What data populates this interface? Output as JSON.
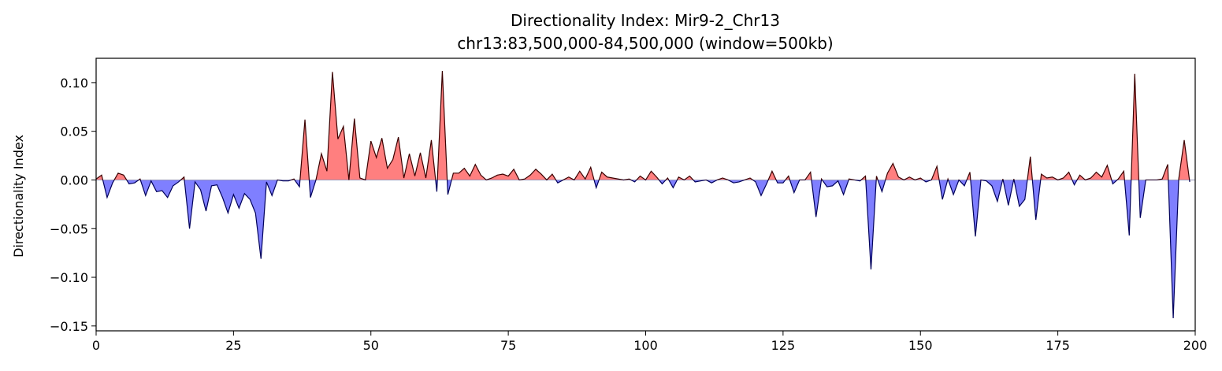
{
  "chart_data": {
    "type": "area",
    "title": "Directionality Index: Mir9-2_Chr13",
    "subtitle": "chr13:83,500,000-84,500,000 (window=500kb)",
    "xlabel": "",
    "ylabel": "Directionality Index",
    "xlim": [
      0,
      200
    ],
    "ylim": [
      -0.155,
      0.125
    ],
    "xticks": [
      0,
      25,
      50,
      75,
      100,
      125,
      150,
      175,
      200
    ],
    "yticks": [
      -0.15,
      -0.1,
      -0.05,
      0.0,
      0.05,
      0.1
    ],
    "xtick_labels": [
      "0",
      "25",
      "50",
      "75",
      "100",
      "125",
      "150",
      "175",
      "200"
    ],
    "ytick_labels": [
      "−0.15",
      "−0.10",
      "−0.05",
      "0.00",
      "0.05",
      "0.10"
    ],
    "grid": false,
    "colors": {
      "positive": "#ff7f7f",
      "negative": "#7f7fff",
      "line_positive": "#3a0000",
      "line_negative": "#00005a",
      "zero_line": "#9999bb"
    },
    "x": [
      0,
      1,
      2,
      3,
      4,
      5,
      6,
      7,
      8,
      9,
      10,
      11,
      12,
      13,
      14,
      15,
      16,
      17,
      18,
      19,
      20,
      21,
      22,
      23,
      24,
      25,
      26,
      27,
      28,
      29,
      30,
      31,
      32,
      33,
      34,
      35,
      36,
      37,
      38,
      39,
      40,
      41,
      42,
      43,
      44,
      45,
      46,
      47,
      48,
      49,
      50,
      51,
      52,
      53,
      54,
      55,
      56,
      57,
      58,
      59,
      60,
      61,
      62,
      63,
      64,
      65,
      66,
      67,
      68,
      69,
      70,
      71,
      72,
      73,
      74,
      75,
      76,
      77,
      78,
      79,
      80,
      81,
      82,
      83,
      84,
      85,
      86,
      87,
      88,
      89,
      90,
      91,
      92,
      93,
      94,
      95,
      96,
      97,
      98,
      99,
      100,
      101,
      102,
      103,
      104,
      105,
      106,
      107,
      108,
      109,
      110,
      111,
      112,
      113,
      114,
      115,
      116,
      117,
      118,
      119,
      120,
      121,
      122,
      123,
      124,
      125,
      126,
      127,
      128,
      129,
      130,
      131,
      132,
      133,
      134,
      135,
      136,
      137,
      138,
      139,
      140,
      141,
      142,
      143,
      144,
      145,
      146,
      147,
      148,
      149,
      150,
      151,
      152,
      153,
      154,
      155,
      156,
      157,
      158,
      159,
      160,
      161,
      162,
      163,
      164,
      165,
      166,
      167,
      168,
      169,
      170,
      171,
      172,
      173,
      174,
      175,
      176,
      177,
      178,
      179,
      180,
      181,
      182,
      183,
      184,
      185,
      186,
      187,
      188,
      189,
      190,
      191,
      192,
      193,
      194,
      195,
      196,
      197,
      198,
      199
    ],
    "values": [
      0.001,
      0.005,
      -0.018,
      -0.003,
      0.007,
      0.005,
      -0.004,
      -0.003,
      0.001,
      -0.016,
      -0.001,
      -0.012,
      -0.011,
      -0.018,
      -0.006,
      -0.002,
      0.003,
      -0.05,
      -0.002,
      -0.01,
      -0.032,
      -0.006,
      -0.005,
      -0.018,
      -0.034,
      -0.015,
      -0.029,
      -0.014,
      -0.02,
      -0.034,
      -0.081,
      -0.002,
      -0.016,
      0.0,
      -0.001,
      -0.001,
      0.001,
      -0.007,
      0.062,
      -0.018,
      0.0,
      0.027,
      0.009,
      0.111,
      0.042,
      0.055,
      0.0,
      0.063,
      0.002,
      0.0,
      0.04,
      0.023,
      0.043,
      0.012,
      0.021,
      0.044,
      0.002,
      0.027,
      0.004,
      0.028,
      0.002,
      0.041,
      -0.012,
      0.112,
      -0.015,
      0.007,
      0.007,
      0.012,
      0.004,
      0.016,
      0.005,
      0.0,
      0.002,
      0.005,
      0.006,
      0.004,
      0.011,
      0.0,
      0.001,
      0.005,
      0.011,
      0.006,
      0.0,
      0.006,
      -0.003,
      0.0,
      0.003,
      0.0,
      0.009,
      0.001,
      0.013,
      -0.008,
      0.008,
      0.003,
      0.002,
      0.001,
      0.0,
      0.001,
      -0.002,
      0.004,
      0.0,
      0.009,
      0.003,
      -0.004,
      0.002,
      -0.008,
      0.003,
      0.0,
      0.004,
      -0.002,
      -0.001,
      0.0,
      -0.003,
      0.0,
      0.002,
      0.0,
      -0.003,
      -0.002,
      0.0,
      0.002,
      -0.002,
      -0.016,
      -0.004,
      0.009,
      -0.003,
      -0.003,
      0.004,
      -0.013,
      0.0,
      0.0,
      0.008,
      -0.038,
      0.001,
      -0.007,
      -0.006,
      -0.001,
      -0.015,
      0.001,
      0.0,
      -0.001,
      0.004,
      -0.092,
      0.004,
      -0.012,
      0.007,
      0.017,
      0.003,
      0.0,
      0.003,
      0.0,
      0.002,
      -0.002,
      0.0,
      0.014,
      -0.02,
      0.001,
      -0.015,
      0.0,
      -0.006,
      0.008,
      -0.058,
      0.0,
      -0.001,
      -0.006,
      -0.022,
      0.001,
      -0.026,
      0.001,
      -0.027,
      -0.02,
      0.024,
      -0.041,
      0.006,
      0.002,
      0.003,
      0.0,
      0.002,
      0.008,
      -0.005,
      0.005,
      0.0,
      0.002,
      0.008,
      0.003,
      0.015,
      -0.004,
      0.001,
      0.009,
      -0.057,
      0.109,
      -0.039,
      0.0,
      0.0,
      0.0,
      0.001,
      0.016,
      -0.142,
      0.001,
      0.041,
      -0.002
    ]
  }
}
